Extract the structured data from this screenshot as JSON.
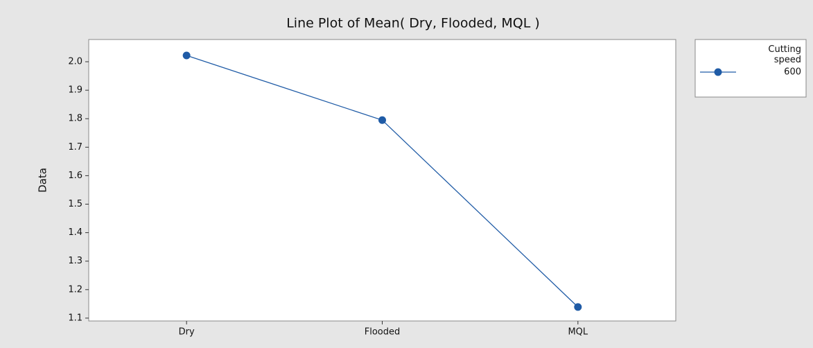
{
  "chart_data": {
    "type": "line",
    "title": "Line Plot of Mean( Dry, Flooded, MQL )",
    "ylabel": "Data",
    "categories": [
      "Dry",
      "Flooded",
      "MQL"
    ],
    "legend_title": "Cutting speed",
    "series": [
      {
        "name": "600",
        "color": "#1f5ba6",
        "values": [
          2.022,
          1.795,
          1.139
        ]
      }
    ],
    "ylim": [
      1.09,
      2.078
    ],
    "yticks": [
      1.1,
      1.2,
      1.3,
      1.4,
      1.5,
      1.6,
      1.7,
      1.8,
      1.9,
      {
        "value": 2,
        "label": "2.0"
      }
    ],
    "legend": "right"
  }
}
